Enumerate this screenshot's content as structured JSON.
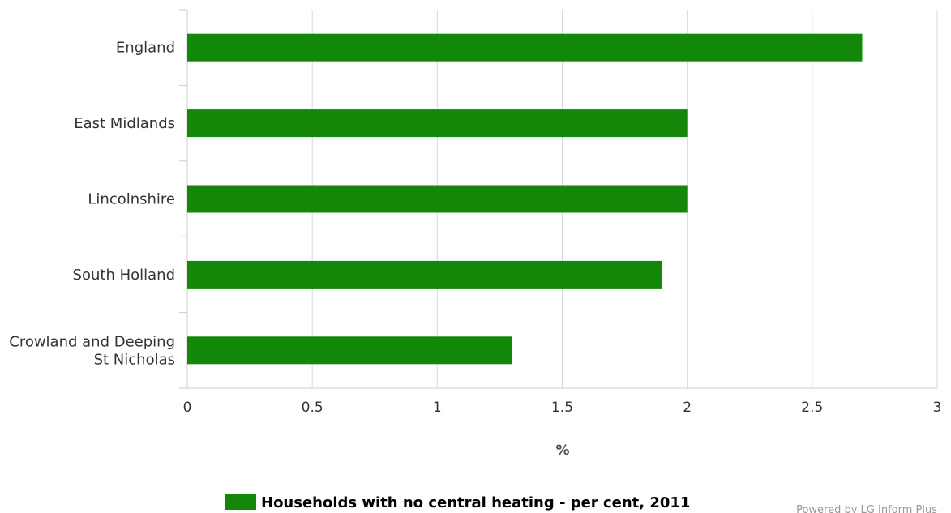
{
  "chart_data": {
    "type": "bar",
    "orientation": "horizontal",
    "categories": [
      "England",
      "East Midlands",
      "Lincolnshire",
      "South Holland",
      "Crowland and Deeping St Nicholas"
    ],
    "series": [
      {
        "name": "Households with no central heating - per cent, 2011",
        "values": [
          2.7,
          2.0,
          2.0,
          1.9,
          1.3
        ],
        "color": "#138808"
      }
    ],
    "xlabel": "%",
    "ylabel": "",
    "xlim": [
      0,
      3
    ],
    "ticks": [
      "0",
      "0.5",
      "1",
      "1.5",
      "2",
      "2.5",
      "3"
    ],
    "grid": true,
    "legend_position": "bottom-center"
  },
  "credit": "Powered by LG Inform Plus"
}
